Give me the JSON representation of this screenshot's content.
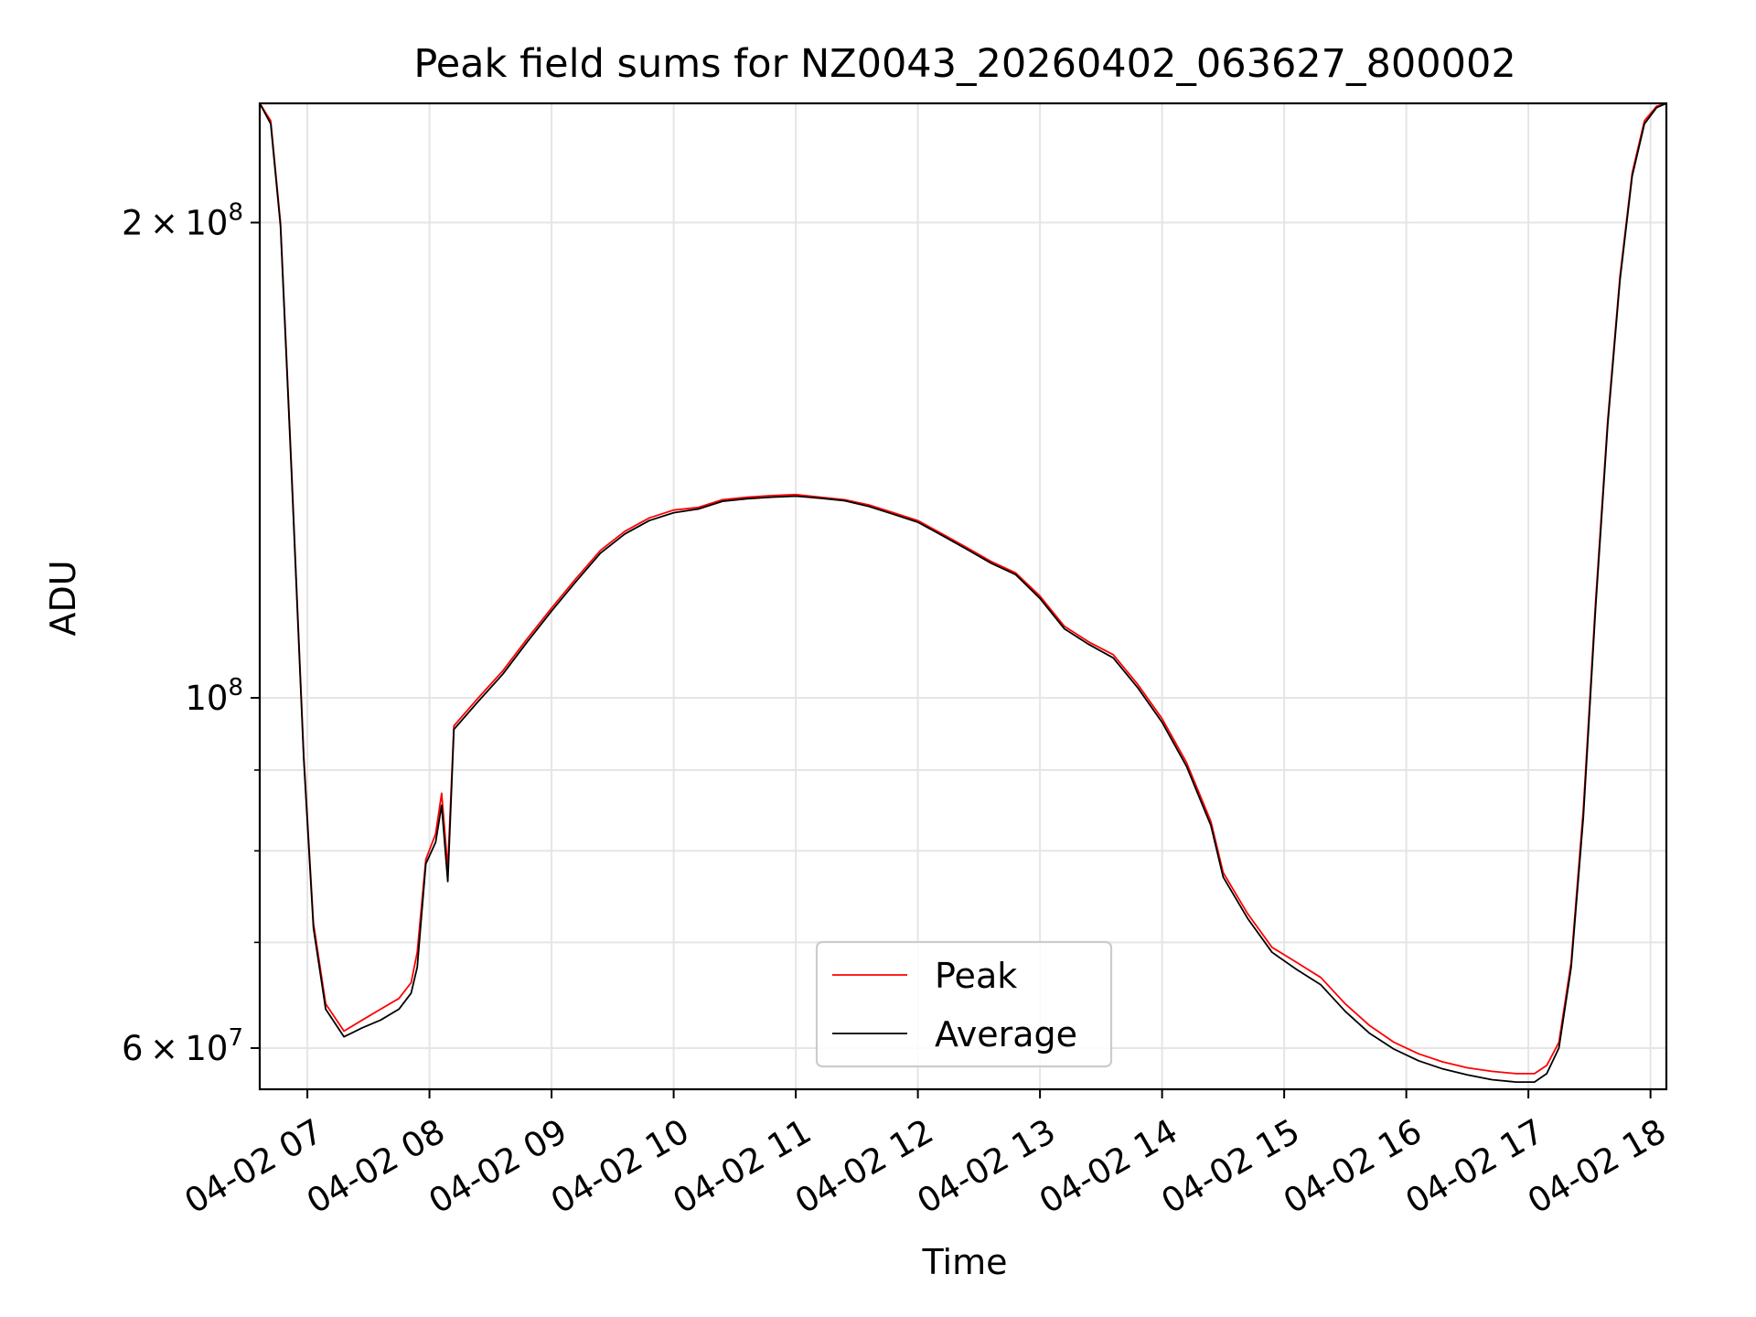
{
  "chart_data": {
    "type": "line",
    "title": "Peak field sums for NZ0043_20260402_063627_800002",
    "xlabel": "Time",
    "ylabel": "ADU",
    "yscale": "log",
    "ylim": [
      56500000,
      238000000
    ],
    "xlim_hours": [
      6.61,
      18.13
    ],
    "grid": true,
    "legend_position": "lower center",
    "x_ticks": [
      {
        "hour": 7,
        "label": "04-02 07"
      },
      {
        "hour": 8,
        "label": "04-02 08"
      },
      {
        "hour": 9,
        "label": "04-02 09"
      },
      {
        "hour": 10,
        "label": "04-02 10"
      },
      {
        "hour": 11,
        "label": "04-02 11"
      },
      {
        "hour": 12,
        "label": "04-02 12"
      },
      {
        "hour": 13,
        "label": "04-02 13"
      },
      {
        "hour": 14,
        "label": "04-02 14"
      },
      {
        "hour": 15,
        "label": "04-02 15"
      },
      {
        "hour": 16,
        "label": "04-02 16"
      },
      {
        "hour": 17,
        "label": "04-02 17"
      },
      {
        "hour": 18,
        "label": "04-02 18"
      }
    ],
    "y_major_ticks": [
      {
        "value": 60000000,
        "base": "6",
        "exp": "7"
      },
      {
        "value": 100000000,
        "base": "",
        "exp": "8"
      },
      {
        "value": 200000000,
        "base": "2",
        "exp": "8"
      }
    ],
    "y_minor_ticks": [
      70000000,
      80000000,
      90000000
    ],
    "series": [
      {
        "name": "Peak",
        "color": "#ff0000",
        "points": [
          [
            6.61,
            238000000
          ],
          [
            6.7,
            232000000
          ],
          [
            6.78,
            200000000
          ],
          [
            6.87,
            140000000
          ],
          [
            6.97,
            92000000
          ],
          [
            7.05,
            72000000
          ],
          [
            7.15,
            64000000
          ],
          [
            7.3,
            61500000
          ],
          [
            7.45,
            62500000
          ],
          [
            7.6,
            63500000
          ],
          [
            7.75,
            64500000
          ],
          [
            7.85,
            66000000
          ],
          [
            7.9,
            69000000
          ],
          [
            7.97,
            79000000
          ],
          [
            8.05,
            82000000
          ],
          [
            8.1,
            87000000
          ],
          [
            8.15,
            78000000
          ],
          [
            8.2,
            96000000
          ],
          [
            8.4,
            100000000
          ],
          [
            8.6,
            104000000
          ],
          [
            8.8,
            109000000
          ],
          [
            9.0,
            114000000
          ],
          [
            9.2,
            119000000
          ],
          [
            9.4,
            124000000
          ],
          [
            9.6,
            127500000
          ],
          [
            9.8,
            130000000
          ],
          [
            10.0,
            131500000
          ],
          [
            10.2,
            132000000
          ],
          [
            10.4,
            133500000
          ],
          [
            10.6,
            134000000
          ],
          [
            10.8,
            134300000
          ],
          [
            11.0,
            134500000
          ],
          [
            11.2,
            134000000
          ],
          [
            11.4,
            133500000
          ],
          [
            11.6,
            132500000
          ],
          [
            11.8,
            131000000
          ],
          [
            12.0,
            129500000
          ],
          [
            12.2,
            127000000
          ],
          [
            12.4,
            124500000
          ],
          [
            12.6,
            122000000
          ],
          [
            12.8,
            120000000
          ],
          [
            13.0,
            116000000
          ],
          [
            13.2,
            111000000
          ],
          [
            13.4,
            108500000
          ],
          [
            13.6,
            106500000
          ],
          [
            13.8,
            102000000
          ],
          [
            14.0,
            97000000
          ],
          [
            14.2,
            91000000
          ],
          [
            14.4,
            83500000
          ],
          [
            14.5,
            77500000
          ],
          [
            14.7,
            73000000
          ],
          [
            14.9,
            69500000
          ],
          [
            15.1,
            68000000
          ],
          [
            15.3,
            66500000
          ],
          [
            15.5,
            64000000
          ],
          [
            15.7,
            62000000
          ],
          [
            15.9,
            60500000
          ],
          [
            16.1,
            59500000
          ],
          [
            16.3,
            58800000
          ],
          [
            16.5,
            58300000
          ],
          [
            16.7,
            58000000
          ],
          [
            16.9,
            57800000
          ],
          [
            17.05,
            57800000
          ],
          [
            17.15,
            58500000
          ],
          [
            17.25,
            60500000
          ],
          [
            17.35,
            68000000
          ],
          [
            17.45,
            85000000
          ],
          [
            17.55,
            115000000
          ],
          [
            17.65,
            150000000
          ],
          [
            17.75,
            185000000
          ],
          [
            17.85,
            215000000
          ],
          [
            17.95,
            232000000
          ],
          [
            18.05,
            237000000
          ],
          [
            18.13,
            238000000
          ]
        ]
      },
      {
        "name": "Average",
        "color": "#000000",
        "points": [
          [
            6.61,
            238000000
          ],
          [
            6.7,
            231000000
          ],
          [
            6.78,
            199000000
          ],
          [
            6.87,
            139000000
          ],
          [
            6.97,
            91500000
          ],
          [
            7.05,
            71500000
          ],
          [
            7.15,
            63500000
          ],
          [
            7.3,
            61000000
          ],
          [
            7.45,
            61800000
          ],
          [
            7.6,
            62500000
          ],
          [
            7.75,
            63500000
          ],
          [
            7.85,
            65000000
          ],
          [
            7.9,
            67500000
          ],
          [
            7.97,
            78500000
          ],
          [
            8.05,
            81000000
          ],
          [
            8.1,
            85500000
          ],
          [
            8.15,
            76500000
          ],
          [
            8.2,
            95500000
          ],
          [
            8.4,
            99500000
          ],
          [
            8.6,
            103500000
          ],
          [
            8.8,
            108500000
          ],
          [
            9.0,
            113500000
          ],
          [
            9.2,
            118500000
          ],
          [
            9.4,
            123500000
          ],
          [
            9.6,
            127000000
          ],
          [
            9.8,
            129500000
          ],
          [
            10.0,
            131000000
          ],
          [
            10.2,
            131700000
          ],
          [
            10.4,
            133200000
          ],
          [
            10.6,
            133700000
          ],
          [
            10.8,
            134000000
          ],
          [
            11.0,
            134200000
          ],
          [
            11.2,
            133800000
          ],
          [
            11.4,
            133300000
          ],
          [
            11.6,
            132200000
          ],
          [
            11.8,
            130700000
          ],
          [
            12.0,
            129200000
          ],
          [
            12.2,
            126700000
          ],
          [
            12.4,
            124200000
          ],
          [
            12.6,
            121700000
          ],
          [
            12.8,
            119700000
          ],
          [
            13.0,
            115600000
          ],
          [
            13.2,
            110600000
          ],
          [
            13.4,
            108100000
          ],
          [
            13.6,
            106000000
          ],
          [
            13.8,
            101500000
          ],
          [
            14.0,
            96500000
          ],
          [
            14.2,
            90500000
          ],
          [
            14.4,
            83000000
          ],
          [
            14.5,
            77000000
          ],
          [
            14.7,
            72500000
          ],
          [
            14.9,
            69000000
          ],
          [
            15.1,
            67300000
          ],
          [
            15.3,
            65800000
          ],
          [
            15.5,
            63300000
          ],
          [
            15.7,
            61300000
          ],
          [
            15.9,
            59900000
          ],
          [
            16.1,
            58900000
          ],
          [
            16.3,
            58200000
          ],
          [
            16.5,
            57700000
          ],
          [
            16.7,
            57300000
          ],
          [
            16.9,
            57100000
          ],
          [
            17.05,
            57100000
          ],
          [
            17.15,
            57800000
          ],
          [
            17.25,
            60000000
          ],
          [
            17.35,
            67500000
          ],
          [
            17.45,
            84000000
          ],
          [
            17.55,
            114000000
          ],
          [
            17.65,
            149000000
          ],
          [
            17.75,
            184000000
          ],
          [
            17.85,
            214000000
          ],
          [
            17.95,
            231000000
          ],
          [
            18.05,
            236500000
          ],
          [
            18.13,
            238000000
          ]
        ]
      }
    ]
  }
}
